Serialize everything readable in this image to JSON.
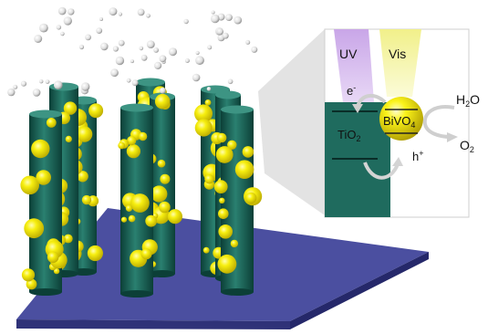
{
  "labels": {
    "uv": "UV",
    "vis": "Vis",
    "electron": "e",
    "electron_sup": "-",
    "tio2": "TiO",
    "tio2_sub": "2",
    "bivo4": "BiVO",
    "bivo4_sub": "4",
    "hole": "h",
    "hole_sup": "+",
    "water": "H",
    "water_sub": "2",
    "water_tail": "O",
    "oxygen": "O",
    "oxygen_sub": "2"
  },
  "colors": {
    "rod": "#1f6b5e",
    "rod_dark": "#0f4a40",
    "sphere": "#f2ea00",
    "substrate": "#4b4fa0",
    "uv_beam": "#c9a6e8",
    "vis_beam": "#f4f3a6",
    "inset_bg": "#ffffff",
    "panel_shade": "#e6e6e6"
  }
}
